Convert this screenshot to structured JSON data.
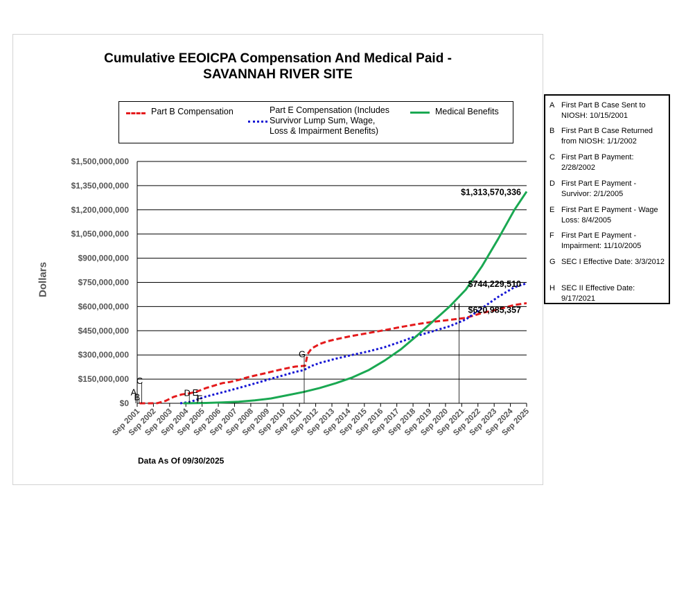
{
  "chart_data": {
    "type": "line",
    "title": "Cumulative EEOICPA Compensation And Medical Paid -",
    "subtitle": "SAVANNAH RIVER SITE",
    "xlabel": "",
    "ylabel": "Dollars",
    "ylim": [
      0,
      1500000000
    ],
    "yticks": [
      0,
      150000000,
      300000000,
      450000000,
      600000000,
      750000000,
      900000000,
      1050000000,
      1200000000,
      1350000000,
      1500000000
    ],
    "ytick_labels": [
      "$0",
      "$150,000,000",
      "$300,000,000",
      "$450,000,000",
      "$600,000,000",
      "$750,000,000",
      "$900,000,000",
      "$1,050,000,000",
      "$1,200,000,000",
      "$1,350,000,000",
      "$1,500,000,000"
    ],
    "categories": [
      "Sep 2001",
      "Sep 2002",
      "Sep 2003",
      "Sep 2004",
      "Sep 2005",
      "Sep 2006",
      "Sep 2007",
      "Sep 2008",
      "Sep 2009",
      "Sep 2010",
      "Sep 2011",
      "Sep 2012",
      "Sep 2013",
      "Sep 2014",
      "Sep 2015",
      "Sep 2016",
      "Sep 2017",
      "Sep 2018",
      "Sep 2019",
      "Sep 2020",
      "Sep 2021",
      "Sep 2022",
      "Sep 2023",
      "Sep 2024",
      "Sep 2025"
    ],
    "series": [
      {
        "name": "Part B Compensation",
        "color": "#e41a1c",
        "style": "dashed",
        "points": [
          [
            2001.9,
            0
          ],
          [
            2002.5,
            0
          ],
          [
            2003.0,
            1000000
          ],
          [
            2003.5,
            15000000
          ],
          [
            2004.0,
            40000000
          ],
          [
            2004.5,
            55000000
          ],
          [
            2005.0,
            62000000
          ],
          [
            2005.5,
            75000000
          ],
          [
            2006.0,
            95000000
          ],
          [
            2006.5,
            110000000
          ],
          [
            2007.0,
            125000000
          ],
          [
            2007.5,
            133000000
          ],
          [
            2008.0,
            145000000
          ],
          [
            2008.5,
            160000000
          ],
          [
            2009.0,
            172000000
          ],
          [
            2009.5,
            183000000
          ],
          [
            2010.0,
            195000000
          ],
          [
            2010.5,
            207000000
          ],
          [
            2011.0,
            218000000
          ],
          [
            2011.5,
            228000000
          ],
          [
            2012.1,
            233000000
          ],
          [
            2012.25,
            305000000
          ],
          [
            2012.5,
            340000000
          ],
          [
            2013.0,
            368000000
          ],
          [
            2013.5,
            385000000
          ],
          [
            2014.0,
            397000000
          ],
          [
            2015.0,
            418000000
          ],
          [
            2016.0,
            436000000
          ],
          [
            2017.0,
            454000000
          ],
          [
            2018.0,
            473000000
          ],
          [
            2019.0,
            491000000
          ],
          [
            2020.0,
            506000000
          ],
          [
            2021.0,
            517000000
          ],
          [
            2022.0,
            530000000
          ],
          [
            2023.0,
            560000000
          ],
          [
            2024.0,
            583000000
          ],
          [
            2025.0,
            610000000
          ],
          [
            2025.75,
            620985357
          ]
        ]
      },
      {
        "name": "Part E Compensation (Includes Survivor Lump Sum, Wage, Loss & Impairment Benefits)",
        "color": "#1515d4",
        "style": "dotted",
        "points": [
          [
            2004.4,
            0
          ],
          [
            2005.0,
            8000000
          ],
          [
            2005.5,
            25000000
          ],
          [
            2006.0,
            42000000
          ],
          [
            2007.0,
            68000000
          ],
          [
            2008.0,
            95000000
          ],
          [
            2009.0,
            123000000
          ],
          [
            2010.0,
            152000000
          ],
          [
            2011.0,
            180000000
          ],
          [
            2011.5,
            195000000
          ],
          [
            2012.0,
            205000000
          ],
          [
            2012.5,
            232000000
          ],
          [
            2013.0,
            250000000
          ],
          [
            2014.0,
            277000000
          ],
          [
            2015.0,
            300000000
          ],
          [
            2016.0,
            322000000
          ],
          [
            2017.0,
            348000000
          ],
          [
            2018.0,
            382000000
          ],
          [
            2019.0,
            418000000
          ],
          [
            2020.0,
            448000000
          ],
          [
            2021.0,
            478000000
          ],
          [
            2022.0,
            520000000
          ],
          [
            2023.0,
            590000000
          ],
          [
            2024.0,
            660000000
          ],
          [
            2025.0,
            720000000
          ],
          [
            2025.75,
            744229510
          ]
        ]
      },
      {
        "name": "Medical Benefits",
        "color": "#1aa852",
        "style": "solid",
        "points": [
          [
            2004.6,
            0
          ],
          [
            2006.0,
            2000000
          ],
          [
            2007.0,
            5000000
          ],
          [
            2008.0,
            10000000
          ],
          [
            2009.0,
            18000000
          ],
          [
            2010.0,
            30000000
          ],
          [
            2011.0,
            50000000
          ],
          [
            2012.0,
            70000000
          ],
          [
            2013.0,
            95000000
          ],
          [
            2014.0,
            125000000
          ],
          [
            2015.0,
            160000000
          ],
          [
            2016.0,
            205000000
          ],
          [
            2017.0,
            265000000
          ],
          [
            2018.0,
            335000000
          ],
          [
            2019.0,
            420000000
          ],
          [
            2020.0,
            510000000
          ],
          [
            2021.0,
            600000000
          ],
          [
            2022.0,
            705000000
          ],
          [
            2023.0,
            850000000
          ],
          [
            2024.0,
            1020000000
          ],
          [
            2025.0,
            1200000000
          ],
          [
            2025.75,
            1313570336
          ]
        ]
      }
    ],
    "end_labels": [
      {
        "series": 2,
        "text": "$1,313,570,336",
        "x": 2025.75,
        "y": 1313570336
      },
      {
        "series": 1,
        "text": "$744,229,510",
        "x": 2025.75,
        "y": 744229510
      },
      {
        "series": 0,
        "text": "$620,985,357",
        "x": 2025.75,
        "y": 620985357
      }
    ],
    "event_markers": [
      {
        "letter": "A",
        "x": 2001.79,
        "y": 50000000
      },
      {
        "letter": "B",
        "x": 2002.0,
        "y": 20000000
      },
      {
        "letter": "C",
        "x": 2002.16,
        "y": 120000000
      },
      {
        "letter": "D",
        "x": 2005.09,
        "y": 45000000
      },
      {
        "letter": "E",
        "x": 2005.59,
        "y": 48000000
      },
      {
        "letter": "F",
        "x": 2005.86,
        "y": 10000000
      },
      {
        "letter": "G",
        "x": 2012.17,
        "y": 285000000
      },
      {
        "letter": "H",
        "x": 2021.71,
        "y": 580000000
      }
    ],
    "legend_position": "top"
  },
  "legend": {
    "part_b": "Part B Compensation",
    "part_e_lines": [
      "Part E Compensation (Includes",
      "Survivor Lump Sum, Wage,",
      "Loss & Impairment Benefits)"
    ],
    "medical": "Medical Benefits"
  },
  "footer": {
    "as_of": "Data As Of  09/30/2025"
  },
  "notes": [
    {
      "letter": "A",
      "lines": [
        "First Part B Case Sent to",
        "NIOSH: 10/15/2001"
      ]
    },
    {
      "letter": "B",
      "lines": [
        "First Part B Case Returned",
        "from NIOSH: 1/1/2002"
      ]
    },
    {
      "letter": "C",
      "lines": [
        "First Part B Payment:",
        "2/28/2002"
      ]
    },
    {
      "letter": "D",
      "lines": [
        "First Part E Payment -",
        "Survivor: 2/1/2005"
      ]
    },
    {
      "letter": "E",
      "lines": [
        "First Part E Payment - Wage",
        "Loss: 8/4/2005"
      ]
    },
    {
      "letter": "F",
      "lines": [
        "First Part E Payment -",
        "Impairment: 11/10/2005"
      ]
    },
    {
      "letter": "G",
      "lines": [
        "SEC I Effective Date: 3/3/2012"
      ]
    },
    {
      "letter": "H",
      "lines": [
        "SEC II Effective Date:",
        "9/17/2021"
      ]
    }
  ]
}
